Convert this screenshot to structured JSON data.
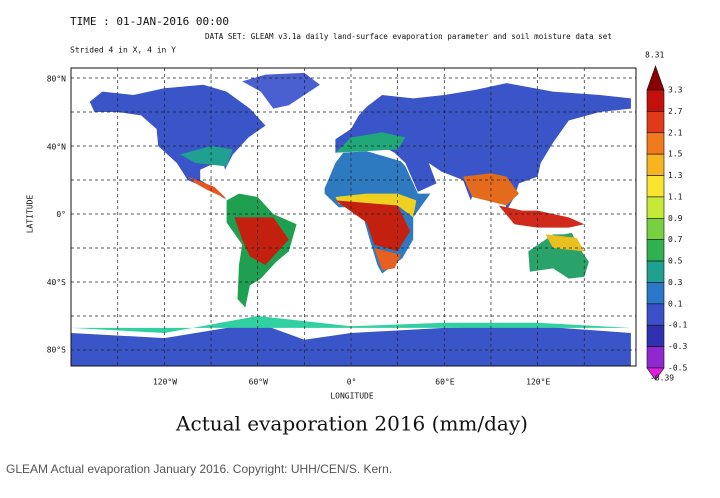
{
  "header": {
    "time": "TIME : 01-JAN-2016 00:00",
    "dataset": "DATA SET: GLEAM v3.1a daily land-surface evaporation parameter and soil moisture data set",
    "stride": "Strided 4 in X, 4 in Y"
  },
  "map": {
    "y_axis_label": "LATITUDE",
    "x_axis_label": "LONGITUDE",
    "lat_labels": [
      "80°N",
      "40°N",
      "0°",
      "40°S",
      "80°S"
    ],
    "lon_labels": [
      "120°W",
      "60°W",
      "0°",
      "60°E",
      "120°E"
    ]
  },
  "colorbar": {
    "max": "8.31",
    "levels": [
      "3.3",
      "2.7",
      "2.1",
      "1.5",
      "1.3",
      "1.1",
      "0.9",
      "0.7",
      "0.5",
      "0.3",
      "0.1",
      "-0.1",
      "-0.3",
      "-0.5"
    ],
    "min": "-0.39"
  },
  "title": "Actual evaporation 2016 (mm/day)",
  "caption": "GLEAM Actual evaporation January 2016. Copyright: UHH/CEN/S. Kern."
}
